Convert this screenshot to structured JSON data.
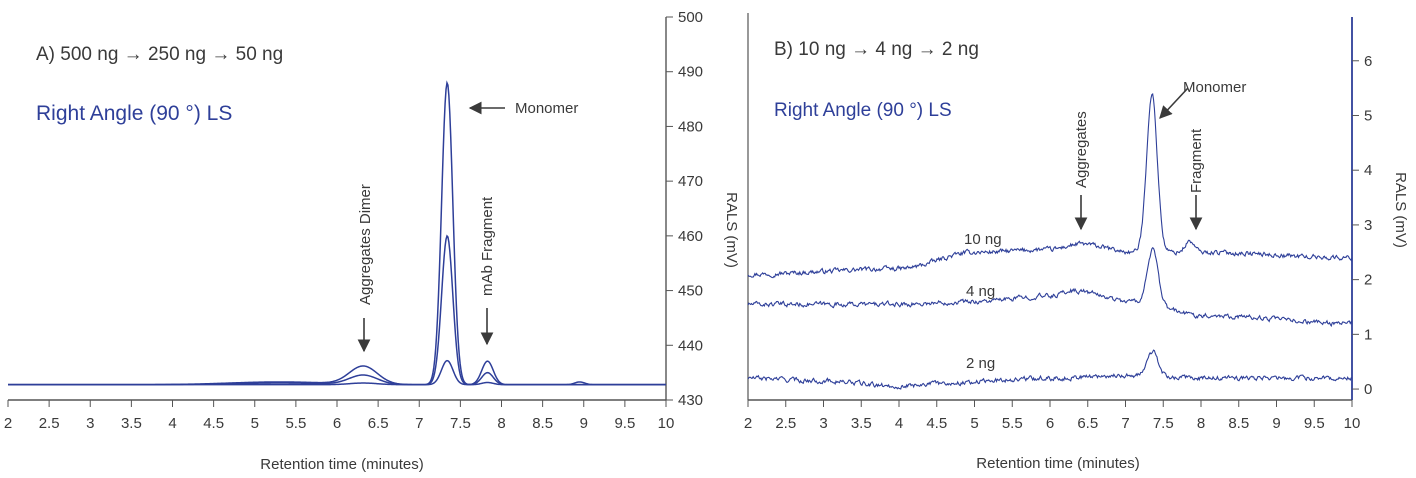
{
  "colors": {
    "trace": "#2e3f99",
    "axis": "#555555",
    "text": "#3a3a3a",
    "detector_label": "#2e3f99"
  },
  "chart_data": [
    {
      "type": "line",
      "panel_title": "A) 500 ng → 250 ng → 50 ng",
      "detector_label": "Right Angle (90 °) LS",
      "xlabel": "Retention time (minutes)",
      "ylabel": "RALS (mV)",
      "xlim": [
        2,
        10
      ],
      "ylim": [
        430,
        500
      ],
      "x_ticks": [
        "2",
        "2.5",
        "3",
        "3.5",
        "4",
        "4.5",
        "5",
        "5.5",
        "6",
        "6.5",
        "7",
        "7.5",
        "8",
        "8.5",
        "9",
        "9.5",
        "10"
      ],
      "y_ticks": [
        "430",
        "440",
        "450",
        "460",
        "470",
        "480",
        "490",
        "500"
      ],
      "y_axis_side": "right",
      "baseline": 432.8,
      "series": [
        {
          "load": "500 ng",
          "peaks": [
            {
              "center": 5.3,
              "height": 0.5,
              "width": 0.6
            },
            {
              "center": 6.32,
              "height": 3.3,
              "width": 0.17
            },
            {
              "center": 7.34,
              "height": 55.2,
              "width": 0.068
            },
            {
              "center": 7.83,
              "height": 4.3,
              "width": 0.07
            },
            {
              "center": 8.95,
              "height": 0.5,
              "width": 0.06
            }
          ]
        },
        {
          "load": "250 ng",
          "peaks": [
            {
              "center": 5.3,
              "height": 0.3,
              "width": 0.6
            },
            {
              "center": 6.32,
              "height": 1.7,
              "width": 0.17
            },
            {
              "center": 7.34,
              "height": 27.2,
              "width": 0.068
            },
            {
              "center": 7.83,
              "height": 2.2,
              "width": 0.07
            }
          ]
        },
        {
          "load": "50 ng",
          "peaks": [
            {
              "center": 6.32,
              "height": 0.3,
              "width": 0.17
            },
            {
              "center": 7.34,
              "height": 4.4,
              "width": 0.07
            },
            {
              "center": 7.83,
              "height": 0.4,
              "width": 0.07
            }
          ]
        }
      ],
      "annotations": [
        {
          "text": "Aggregates Dimer",
          "x": 6.32,
          "y": 436.2,
          "orientation": "vertical"
        },
        {
          "text": "mAb Fragment",
          "x": 7.83,
          "y": 437.2,
          "orientation": "vertical"
        },
        {
          "text": "Monomer",
          "x": 7.5,
          "y": 482.5,
          "orientation": "horizontal"
        }
      ]
    },
    {
      "type": "line",
      "panel_title": "B) 10 ng → 4 ng → 2 ng",
      "detector_label": "Right Angle (90 °) LS",
      "xlabel": "Retention time (minutes)",
      "ylabel": "RALS (mV)",
      "xlim": [
        2,
        10
      ],
      "ylim": [
        -0.2,
        6.8
      ],
      "x_ticks": [
        "2",
        "2.5",
        "3",
        "3.5",
        "4",
        "4.5",
        "5",
        "5.5",
        "6",
        "6.5",
        "7",
        "7.5",
        "8",
        "8.5",
        "9",
        "9.5",
        "10"
      ],
      "y_ticks": [
        "0",
        "1",
        "2",
        "3",
        "4",
        "5",
        "6"
      ],
      "y_axis_side": "right",
      "series": [
        {
          "name": "10 ng",
          "baseline_points": [
            [
              2,
              2.1
            ],
            [
              4,
              2.2
            ],
            [
              5,
              2.5
            ],
            [
              6,
              2.55
            ],
            [
              6.4,
              2.65
            ],
            [
              7.1,
              2.5
            ],
            [
              8,
              2.5
            ],
            [
              10,
              2.4
            ]
          ],
          "peaks": [
            {
              "center": 7.35,
              "height": 2.9,
              "width": 0.07
            },
            {
              "center": 7.85,
              "height": 0.2,
              "width": 0.06
            }
          ]
        },
        {
          "name": "4 ng",
          "baseline_points": [
            [
              2,
              1.55
            ],
            [
              4,
              1.55
            ],
            [
              5,
              1.6
            ],
            [
              6,
              1.7
            ],
            [
              6.3,
              1.8
            ],
            [
              7.1,
              1.6
            ],
            [
              8,
              1.35
            ],
            [
              10,
              1.2
            ]
          ],
          "peaks": [
            {
              "center": 7.36,
              "height": 1.0,
              "width": 0.07
            }
          ]
        },
        {
          "name": "2 ng",
          "baseline_points": [
            [
              2,
              0.2
            ],
            [
              3,
              0.15
            ],
            [
              4,
              0.05
            ],
            [
              4.4,
              0.1
            ],
            [
              6,
              0.2
            ],
            [
              7,
              0.25
            ],
            [
              8,
              0.2
            ],
            [
              10,
              0.2
            ]
          ],
          "peaks": [
            {
              "center": 7.36,
              "height": 0.45,
              "width": 0.07
            }
          ]
        }
      ],
      "annotations": [
        {
          "text": "Aggregates",
          "x": 6.38,
          "y": 2.85,
          "orientation": "vertical"
        },
        {
          "text": "Fragment",
          "x": 7.88,
          "y": 2.7,
          "orientation": "vertical"
        },
        {
          "text": "Monomer",
          "x": 7.4,
          "y": 5.35,
          "orientation": "horizontal"
        }
      ]
    }
  ]
}
